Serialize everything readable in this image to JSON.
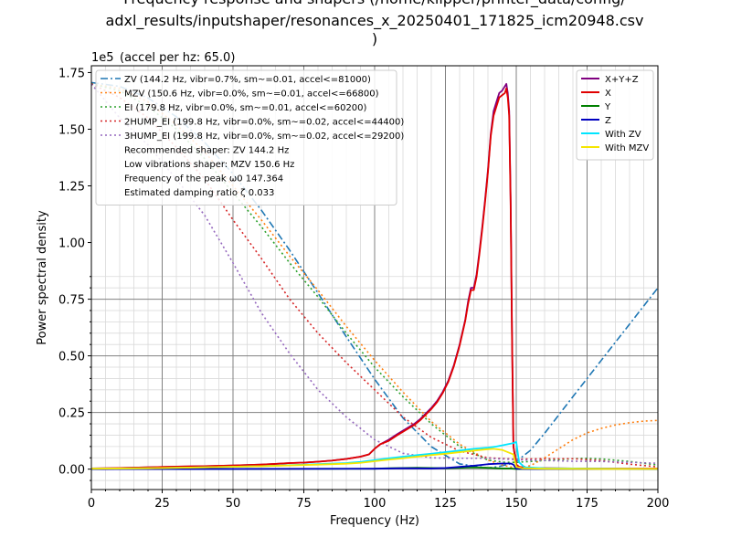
{
  "chart_data": {
    "type": "line",
    "title_lines": [
      "Frequency response and shapers (/home/klipper/printer_data/config/",
      "adxl_results/inputshaper/resonances_x_20250401_171825_icm20948.csv",
      ")"
    ],
    "subtitle": "(accel per hz: 65.0)",
    "y_offset_label": "1e5",
    "xlabel": "Frequency (Hz)",
    "ylabel": "Power spectral density",
    "xlim": [
      0,
      200
    ],
    "ylim": [
      -0.09,
      1.78
    ],
    "y_multiplier": 100000,
    "x_ticks": [
      "0",
      "25",
      "50",
      "75",
      "100",
      "125",
      "150",
      "175",
      "200"
    ],
    "y_ticks": [
      "0.00",
      "0.25",
      "0.50",
      "0.75",
      "1.00",
      "1.25",
      "1.50",
      "1.75"
    ],
    "grid": "major and minor",
    "psd_series": [
      {
        "name": "X+Y+Z",
        "color": "#800080",
        "x": [
          0,
          10,
          20,
          30,
          40,
          50,
          60,
          65,
          70,
          75,
          80,
          85,
          90,
          95,
          98,
          100,
          102,
          105,
          108,
          110,
          112,
          114,
          116,
          118,
          120,
          122,
          124,
          126,
          128,
          130,
          132,
          133,
          134,
          135,
          136,
          137,
          138,
          139,
          140,
          141,
          142,
          143,
          144,
          145,
          146,
          146.5,
          147,
          147.5,
          148,
          148.5,
          149,
          150,
          151,
          153,
          160,
          170,
          180,
          190,
          200
        ],
        "y": [
          0.003,
          0.005,
          0.008,
          0.011,
          0.013,
          0.016,
          0.02,
          0.023,
          0.027,
          0.029,
          0.033,
          0.038,
          0.045,
          0.055,
          0.065,
          0.09,
          0.11,
          0.13,
          0.155,
          0.17,
          0.185,
          0.2,
          0.22,
          0.245,
          0.27,
          0.3,
          0.34,
          0.39,
          0.46,
          0.55,
          0.66,
          0.74,
          0.8,
          0.8,
          0.86,
          0.96,
          1.07,
          1.19,
          1.32,
          1.48,
          1.58,
          1.62,
          1.66,
          1.67,
          1.69,
          1.7,
          1.66,
          1.58,
          1.2,
          0.6,
          0.1,
          0.02,
          0.01,
          0.006,
          0.004,
          0.003,
          0.002,
          0.002,
          0.002
        ]
      },
      {
        "name": "X",
        "color": "#e00000",
        "x": [
          0,
          10,
          20,
          30,
          40,
          50,
          60,
          65,
          70,
          75,
          80,
          85,
          90,
          95,
          98,
          100,
          102,
          105,
          108,
          110,
          112,
          114,
          116,
          118,
          120,
          122,
          124,
          126,
          128,
          130,
          132,
          133,
          134,
          135,
          136,
          137,
          138,
          139,
          140,
          141,
          142,
          143,
          144,
          145,
          146,
          146.5,
          147,
          147.5,
          148,
          148.5,
          149,
          150,
          151,
          153,
          160,
          170,
          180,
          190,
          200
        ],
        "y": [
          0.003,
          0.005,
          0.008,
          0.011,
          0.013,
          0.016,
          0.02,
          0.023,
          0.027,
          0.029,
          0.033,
          0.038,
          0.045,
          0.055,
          0.065,
          0.09,
          0.11,
          0.125,
          0.15,
          0.165,
          0.18,
          0.195,
          0.215,
          0.24,
          0.265,
          0.295,
          0.335,
          0.385,
          0.455,
          0.545,
          0.655,
          0.73,
          0.79,
          0.79,
          0.85,
          0.95,
          1.06,
          1.18,
          1.31,
          1.47,
          1.56,
          1.6,
          1.64,
          1.65,
          1.66,
          1.68,
          1.64,
          1.56,
          1.18,
          0.58,
          0.1,
          0.02,
          0.01,
          0.006,
          0.004,
          0.003,
          0.002,
          0.002,
          0.002
        ]
      },
      {
        "name": "Y",
        "color": "#008000",
        "x": [
          0,
          50,
          100,
          105,
          110,
          115,
          120,
          125,
          130,
          135,
          140,
          145,
          148,
          150,
          155,
          200
        ],
        "y": [
          0.001,
          0.001,
          0.002,
          0.004,
          0.005,
          0.006,
          0.005,
          0.004,
          0.006,
          0.008,
          0.006,
          0.003,
          0.003,
          0.001,
          0.001,
          0.001
        ]
      },
      {
        "name": "Z",
        "color": "#0000c0",
        "x": [
          0,
          50,
          100,
          110,
          120,
          125,
          130,
          135,
          140,
          145,
          148,
          149,
          150,
          155,
          200
        ],
        "y": [
          0.0,
          0.001,
          0.002,
          0.004,
          0.003,
          0.005,
          0.01,
          0.015,
          0.022,
          0.025,
          0.025,
          0.02,
          0.002,
          0.001,
          0.0
        ]
      },
      {
        "name": "With ZV",
        "color": "#00e5ff",
        "x": [
          0,
          20,
          40,
          60,
          80,
          90,
          95,
          100,
          105,
          110,
          115,
          120,
          125,
          130,
          135,
          140,
          143,
          145,
          147,
          149,
          150,
          151,
          153,
          160,
          180,
          200
        ],
        "y": [
          0.002,
          0.004,
          0.008,
          0.013,
          0.022,
          0.027,
          0.032,
          0.04,
          0.048,
          0.055,
          0.062,
          0.068,
          0.075,
          0.082,
          0.09,
          0.095,
          0.1,
          0.105,
          0.11,
          0.115,
          0.12,
          0.03,
          0.008,
          0.004,
          0.002,
          0.001
        ]
      },
      {
        "name": "With MZV",
        "color": "#f5e600",
        "x": [
          0,
          20,
          40,
          60,
          80,
          90,
          95,
          100,
          105,
          110,
          115,
          120,
          125,
          130,
          135,
          140,
          142,
          145,
          147,
          148,
          149,
          150,
          152,
          160,
          180,
          200
        ],
        "y": [
          0.002,
          0.004,
          0.008,
          0.013,
          0.02,
          0.024,
          0.028,
          0.035,
          0.042,
          0.048,
          0.055,
          0.062,
          0.068,
          0.075,
          0.082,
          0.088,
          0.09,
          0.085,
          0.075,
          0.07,
          0.065,
          0.01,
          0.004,
          0.002,
          0.001,
          0.001
        ]
      }
    ],
    "shaper_series": [
      {
        "name": "ZV (144.2 Hz, vibr=0.7%, sm~=0.01, accel<=81000)",
        "color": "#1f77b4",
        "dash": "8 3 2 3",
        "x": [
          0,
          10,
          20,
          30,
          40,
          50,
          60,
          70,
          80,
          90,
          100,
          110,
          120,
          130,
          140,
          144,
          148,
          150,
          155,
          160,
          170,
          180,
          190,
          200
        ],
        "y": [
          1.706,
          1.689,
          1.638,
          1.555,
          1.442,
          1.303,
          1.143,
          0.966,
          0.777,
          0.584,
          0.397,
          0.226,
          0.099,
          0.023,
          0.005,
          0.012,
          0.024,
          0.034,
          0.083,
          0.158,
          0.32,
          0.48,
          0.64,
          0.8
        ]
      },
      {
        "name": "MZV (150.6 Hz, vibr=0.0%, sm~=0.01, accel<=66800)",
        "color": "#ff7f0e",
        "dash": "2 3",
        "x": [
          0,
          10,
          20,
          30,
          40,
          50,
          60,
          70,
          80,
          90,
          100,
          110,
          120,
          130,
          140,
          146,
          150,
          155,
          160,
          165,
          170,
          175,
          180,
          185,
          190,
          195,
          200
        ],
        "y": [
          1.7,
          1.68,
          1.62,
          1.52,
          1.4,
          1.25,
          1.1,
          0.94,
          0.79,
          0.63,
          0.48,
          0.34,
          0.21,
          0.11,
          0.04,
          0.015,
          0.005,
          0.015,
          0.05,
          0.09,
          0.13,
          0.16,
          0.18,
          0.195,
          0.205,
          0.212,
          0.215
        ]
      },
      {
        "name": "EI (179.8 Hz, vibr=0.0%, sm~=0.01, accel<=60200)",
        "color": "#2ca02c",
        "dash": "2 3",
        "x": [
          0,
          10,
          20,
          30,
          40,
          50,
          60,
          70,
          80,
          90,
          100,
          110,
          120,
          130,
          140,
          146,
          150,
          155,
          160,
          170,
          175,
          180,
          190,
          200
        ],
        "y": [
          1.7,
          1.67,
          1.6,
          1.5,
          1.37,
          1.22,
          1.07,
          0.91,
          0.76,
          0.6,
          0.45,
          0.32,
          0.2,
          0.1,
          0.04,
          0.03,
          0.03,
          0.034,
          0.038,
          0.046,
          0.048,
          0.045,
          0.034,
          0.018
        ]
      },
      {
        "name": "2HUMP_EI (199.8 Hz, vibr=0.0%, sm~=0.02, accel<=44400)",
        "color": "#d62728",
        "dash": "2 3",
        "x": [
          0,
          10,
          20,
          30,
          40,
          50,
          60,
          70,
          80,
          90,
          100,
          110,
          120,
          130,
          140,
          150,
          160,
          170,
          180,
          190,
          200
        ],
        "y": [
          1.7,
          1.64,
          1.55,
          1.42,
          1.28,
          1.1,
          0.93,
          0.75,
          0.6,
          0.47,
          0.35,
          0.23,
          0.14,
          0.08,
          0.05,
          0.044,
          0.046,
          0.046,
          0.038,
          0.022,
          0.01
        ]
      },
      {
        "name": "3HUMP_EI (199.8 Hz, vibr=0.0%, sm~=0.02, accel<=29200)",
        "color": "#9467bd",
        "dash": "2 3",
        "x": [
          0,
          10,
          20,
          30,
          40,
          50,
          60,
          70,
          80,
          90,
          100,
          110,
          120,
          130,
          140,
          150,
          160,
          170,
          180,
          190,
          200
        ],
        "y": [
          1.7,
          1.55,
          1.43,
          1.28,
          1.12,
          0.91,
          0.69,
          0.51,
          0.35,
          0.23,
          0.13,
          0.07,
          0.05,
          0.048,
          0.048,
          0.042,
          0.038,
          0.035,
          0.034,
          0.03,
          0.026
        ]
      }
    ],
    "legend_left_placement": "upper-left",
    "legend_left_text_only": [
      "Recommended shaper: ZV 144.2 Hz",
      "Low vibrations shaper: MZV 150.6 Hz",
      "Frequency of the peak ω0 147.364",
      "Estimated damping ratio ζ 0.033"
    ],
    "legend_right_placement": "upper-right"
  }
}
